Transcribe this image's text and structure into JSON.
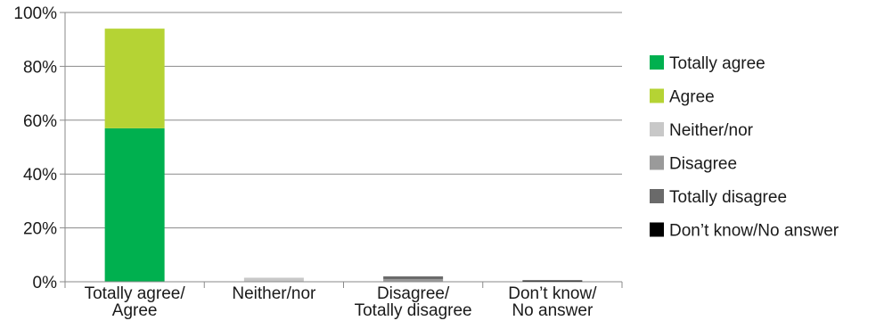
{
  "chart_data": {
    "type": "bar",
    "stacked": true,
    "title": "",
    "xlabel": "",
    "ylabel": "",
    "ylim": [
      0,
      100
    ],
    "y_ticks": [
      "0%",
      "20%",
      "40%",
      "60%",
      "80%",
      "100%"
    ],
    "grid": true,
    "legend_position": "right",
    "categories": [
      [
        "Totally agree/",
        "Agree"
      ],
      [
        "Neither/nor"
      ],
      [
        "Disagree/",
        "Totally disagree"
      ],
      [
        "Don’t know/",
        "No answer"
      ]
    ],
    "series": [
      {
        "name": "Totally agree",
        "color": "#00b04f",
        "values": [
          57,
          0,
          0,
          0
        ]
      },
      {
        "name": "Agree",
        "color": "#b5d334",
        "values": [
          37,
          0,
          0,
          0
        ]
      },
      {
        "name": "Neither/nor",
        "color": "#c8c8c8",
        "values": [
          0,
          1.5,
          0,
          0
        ]
      },
      {
        "name": "Disagree",
        "color": "#9a9a9a",
        "values": [
          0,
          0,
          1,
          0
        ]
      },
      {
        "name": "Totally disagree",
        "color": "#6a6a6a",
        "values": [
          0,
          0,
          1,
          0
        ]
      },
      {
        "name": "Don’t know/No answer",
        "color": "#000000",
        "values": [
          0,
          0,
          0,
          0.5
        ]
      }
    ]
  }
}
